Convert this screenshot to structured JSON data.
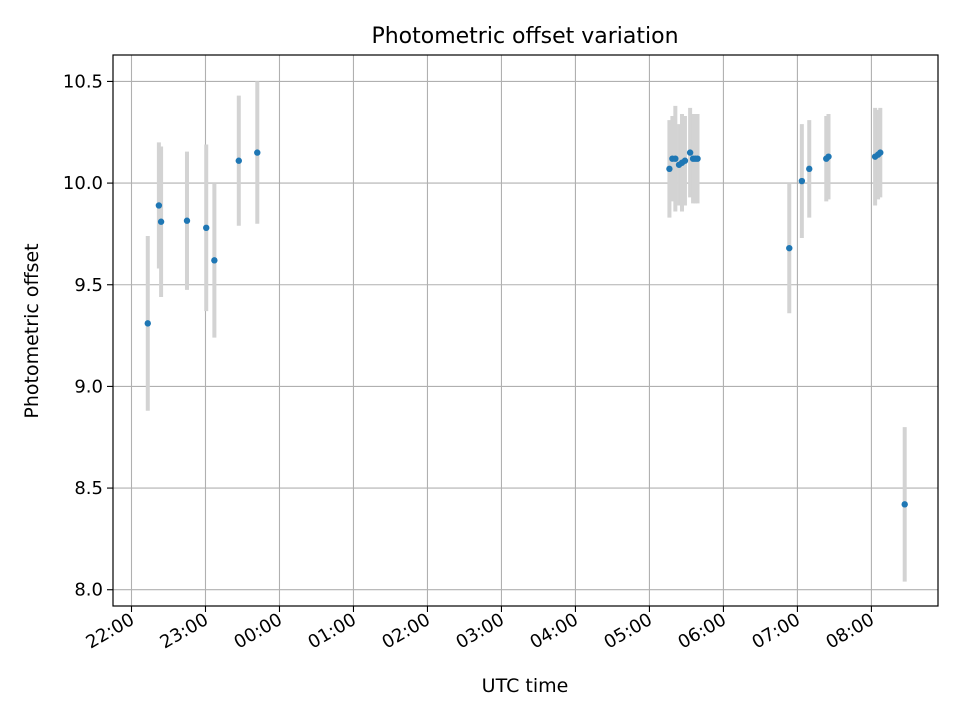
{
  "chart_data": {
    "type": "scatter",
    "title": "Photometric offset variation",
    "xlabel": "UTC time",
    "ylabel": "Photometric offset",
    "x_unit": "hours after 22:00 UTC",
    "xlim": [
      -0.25,
      10.9
    ],
    "ylim": [
      7.92,
      10.63
    ],
    "grid": true,
    "colors": {
      "points": "#1f77b4",
      "errorbars": "#d3d3d3",
      "grid": "#b0b0b0"
    },
    "x_ticks": [
      {
        "value": 0,
        "label": "22:00"
      },
      {
        "value": 1,
        "label": "23:00"
      },
      {
        "value": 2,
        "label": "00:00"
      },
      {
        "value": 3,
        "label": "01:00"
      },
      {
        "value": 4,
        "label": "02:00"
      },
      {
        "value": 5,
        "label": "03:00"
      },
      {
        "value": 6,
        "label": "04:00"
      },
      {
        "value": 7,
        "label": "05:00"
      },
      {
        "value": 8,
        "label": "06:00"
      },
      {
        "value": 9,
        "label": "07:00"
      },
      {
        "value": 10,
        "label": "08:00"
      }
    ],
    "y_ticks": [
      {
        "value": 8.0,
        "label": "8.0"
      },
      {
        "value": 8.5,
        "label": "8.5"
      },
      {
        "value": 9.0,
        "label": "9.0"
      },
      {
        "value": 9.5,
        "label": "9.5"
      },
      {
        "value": 10.0,
        "label": "10.0"
      },
      {
        "value": 10.5,
        "label": "10.5"
      }
    ],
    "points": [
      {
        "x": 0.22,
        "y": 9.31,
        "err": 0.43
      },
      {
        "x": 0.37,
        "y": 9.89,
        "err": 0.31
      },
      {
        "x": 0.4,
        "y": 9.81,
        "err": 0.37
      },
      {
        "x": 0.75,
        "y": 9.815,
        "err": 0.34
      },
      {
        "x": 1.01,
        "y": 9.78,
        "err": 0.41
      },
      {
        "x": 1.12,
        "y": 9.62,
        "err": 0.38
      },
      {
        "x": 1.45,
        "y": 10.11,
        "err": 0.32
      },
      {
        "x": 1.7,
        "y": 10.15,
        "err": 0.35
      },
      {
        "x": 7.27,
        "y": 10.07,
        "err": 0.24
      },
      {
        "x": 7.31,
        "y": 10.12,
        "err": 0.21
      },
      {
        "x": 7.35,
        "y": 10.12,
        "err": 0.26
      },
      {
        "x": 7.4,
        "y": 10.09,
        "err": 0.2
      },
      {
        "x": 7.44,
        "y": 10.1,
        "err": 0.24
      },
      {
        "x": 7.48,
        "y": 10.11,
        "err": 0.22
      },
      {
        "x": 7.55,
        "y": 10.15,
        "err": 0.22
      },
      {
        "x": 7.59,
        "y": 10.12,
        "err": 0.22
      },
      {
        "x": 7.62,
        "y": 10.12,
        "err": 0.22
      },
      {
        "x": 7.65,
        "y": 10.12,
        "err": 0.22
      },
      {
        "x": 8.89,
        "y": 9.68,
        "err": 0.32
      },
      {
        "x": 9.06,
        "y": 10.01,
        "err": 0.28
      },
      {
        "x": 9.16,
        "y": 10.07,
        "err": 0.24
      },
      {
        "x": 9.39,
        "y": 10.12,
        "err": 0.21
      },
      {
        "x": 9.42,
        "y": 10.13,
        "err": 0.21
      },
      {
        "x": 10.05,
        "y": 10.13,
        "err": 0.24
      },
      {
        "x": 10.09,
        "y": 10.14,
        "err": 0.22
      },
      {
        "x": 10.12,
        "y": 10.15,
        "err": 0.22
      },
      {
        "x": 10.45,
        "y": 8.42,
        "err": 0.38
      }
    ]
  }
}
